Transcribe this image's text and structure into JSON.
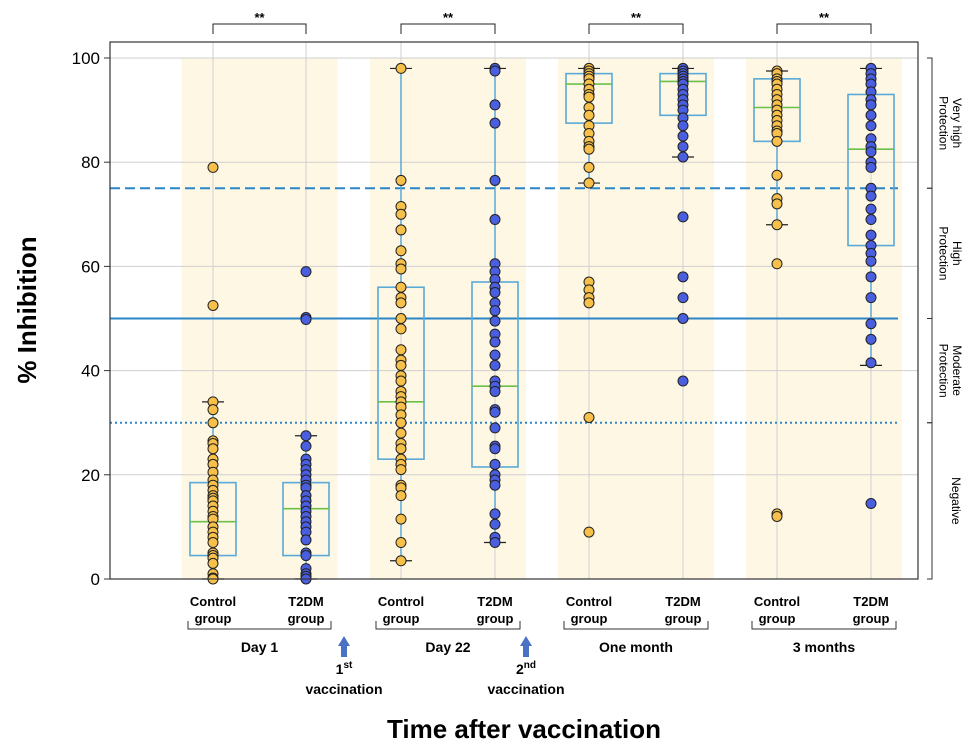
{
  "chart_data": {
    "type": "box",
    "ylabel": "% Inhibition",
    "xlabel": "Time after vaccination",
    "ylim": [
      0,
      103
    ],
    "y_ticks": [
      0,
      20,
      40,
      60,
      80,
      100
    ],
    "grid": true,
    "colors": {
      "control": "#f7c04a",
      "t2dm": "#4a5ee0",
      "box": "#5aa9d6",
      "median": "#6cc04a",
      "shade": "#fdf7e4"
    },
    "thresholds": [
      {
        "value": 75,
        "style": "dashed"
      },
      {
        "value": 50,
        "style": "solid"
      },
      {
        "value": 30,
        "style": "dotted"
      }
    ],
    "protection_bands": [
      {
        "label": "Very high Protection",
        "from": 75,
        "to": 100
      },
      {
        "label": "High Protection",
        "from": 50,
        "to": 75
      },
      {
        "label": "Moderate Protection",
        "from": 30,
        "to": 50
      },
      {
        "label": "Negative",
        "from": 0,
        "to": 30
      }
    ],
    "timepoints": [
      {
        "label": "Day 1",
        "significance": "**"
      },
      {
        "label": "Day 22",
        "significance": "**"
      },
      {
        "label": "One month",
        "significance": "**"
      },
      {
        "label": "3 months",
        "significance": "**"
      }
    ],
    "vaccinations": [
      {
        "ordinal": "1",
        "suffix": "st",
        "label": "vaccination"
      },
      {
        "ordinal": "2",
        "suffix": "nd",
        "label": "vaccination"
      }
    ],
    "groups": [
      {
        "timepoint": 0,
        "label": "Control group",
        "color": "control",
        "box": {
          "q1": 4.5,
          "median": 11,
          "q3": 18.5,
          "wlow": 0,
          "whigh": 34
        },
        "points": [
          79,
          52.5,
          34,
          32.5,
          30,
          26.5,
          26,
          25,
          23,
          22,
          20.5,
          19,
          18,
          17,
          16,
          15.5,
          15,
          14,
          13,
          12,
          11.5,
          10,
          9,
          8,
          7,
          5,
          4.5,
          4,
          3,
          1,
          0.2,
          0
        ]
      },
      {
        "timepoint": 0,
        "label": "T2DM group",
        "color": "t2dm",
        "box": {
          "q1": 4.5,
          "median": 13.5,
          "q3": 18.5,
          "wlow": 0,
          "whigh": 27.5
        },
        "points": [
          59,
          50.2,
          49.8,
          27.5,
          25.5,
          23,
          22,
          21,
          20,
          19,
          18,
          17.5,
          16,
          15,
          14,
          13,
          12,
          11,
          10,
          9,
          7.5,
          5,
          4.5,
          2,
          1,
          0.5,
          0
        ]
      },
      {
        "timepoint": 1,
        "label": "Control group",
        "color": "control",
        "box": {
          "q1": 23,
          "median": 34,
          "q3": 56,
          "wlow": 3.5,
          "whigh": 98
        },
        "points": [
          98,
          76.5,
          71.5,
          70,
          67,
          63,
          60.5,
          59.5,
          56,
          54,
          53,
          50,
          48,
          44,
          42,
          41,
          39,
          38,
          36,
          35,
          34,
          33,
          31.5,
          30,
          28,
          26,
          25,
          23,
          22,
          21,
          18,
          17.5,
          16,
          11.5,
          7,
          3.5
        ]
      },
      {
        "timepoint": 1,
        "label": "T2DM group",
        "color": "t2dm",
        "box": {
          "q1": 21.5,
          "median": 37,
          "q3": 57,
          "wlow": 7,
          "whigh": 98
        },
        "points": [
          98,
          97.5,
          91,
          87.5,
          76.5,
          69,
          60.5,
          59,
          57.5,
          56,
          55,
          53,
          51.5,
          49.5,
          47,
          45.5,
          43,
          41,
          38,
          37,
          36,
          32.5,
          32,
          29,
          25.5,
          25,
          22,
          20,
          19,
          18,
          12.5,
          10.5,
          8,
          7
        ]
      },
      {
        "timepoint": 2,
        "label": "Control group",
        "color": "control",
        "box": {
          "q1": 87.5,
          "median": 95,
          "q3": 97,
          "wlow": 76,
          "whigh": 98
        },
        "points": [
          98,
          97.5,
          97,
          96.5,
          96,
          95,
          94,
          93,
          92.5,
          90.5,
          89,
          87,
          85.5,
          84,
          83,
          82.5,
          79,
          76,
          57,
          55.5,
          54,
          53,
          31,
          9
        ]
      },
      {
        "timepoint": 2,
        "label": "T2DM group",
        "color": "t2dm",
        "box": {
          "q1": 89,
          "median": 95.5,
          "q3": 97,
          "wlow": 81,
          "whigh": 98
        },
        "points": [
          98,
          97.5,
          97,
          96.5,
          96,
          95.5,
          95,
          94,
          93,
          92,
          91,
          90,
          88.5,
          87,
          85,
          83,
          81,
          69.5,
          58,
          54,
          50,
          38
        ]
      },
      {
        "timepoint": 3,
        "label": "Control group",
        "color": "control",
        "box": {
          "q1": 84,
          "median": 90.5,
          "q3": 96,
          "wlow": 68,
          "whigh": 97.5
        },
        "points": [
          97.5,
          97,
          96,
          95.5,
          95,
          94,
          93,
          92,
          91,
          90,
          89,
          88,
          87,
          86,
          85.5,
          84,
          77.5,
          73,
          72,
          68,
          60.5,
          12.5,
          12
        ]
      },
      {
        "timepoint": 3,
        "label": "T2DM group",
        "color": "t2dm",
        "box": {
          "q1": 64,
          "median": 82.5,
          "q3": 93,
          "wlow": 41,
          "whigh": 98
        },
        "points": [
          98,
          97,
          96,
          95,
          93.5,
          92,
          91,
          89,
          87,
          84.5,
          83,
          82,
          80,
          79,
          75,
          73.5,
          71,
          69,
          66,
          64,
          62.5,
          61,
          58,
          54,
          49,
          46,
          41.5,
          14.5
        ]
      }
    ]
  }
}
